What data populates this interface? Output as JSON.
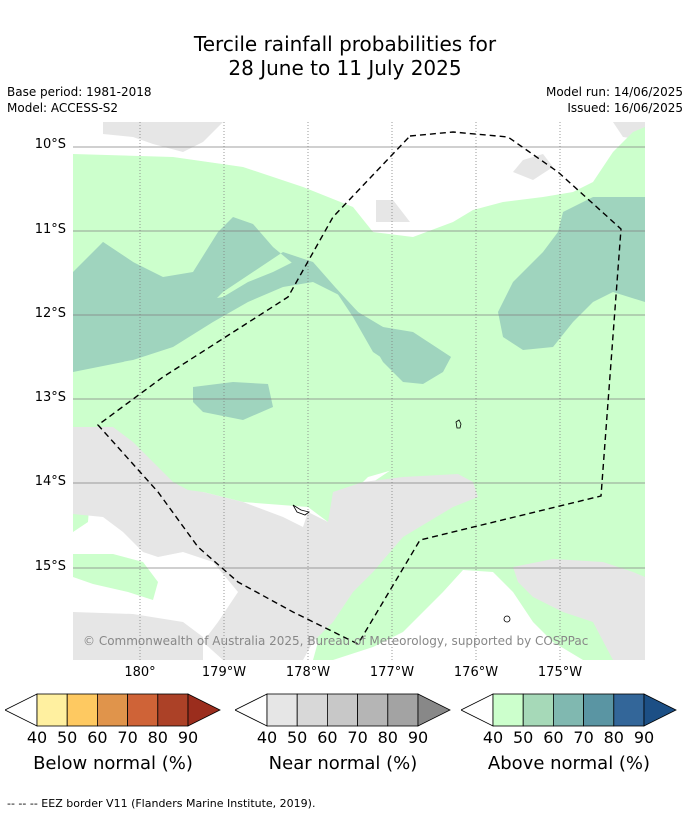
{
  "title": {
    "line1": "Tercile rainfall probabilities for",
    "line2": "28 June to 11 July 2025"
  },
  "meta": {
    "base_period": "Base period: 1981-2018",
    "model": "Model: ACCESS-S2",
    "model_run": "Model run: 14/06/2025",
    "issued": "Issued: 16/06/2025"
  },
  "map": {
    "latitudes": [
      "10°S",
      "11°S",
      "12°S",
      "13°S",
      "14°S",
      "15°S"
    ],
    "longitudes": [
      "180°",
      "179°W",
      "178°W",
      "177°W",
      "176°W",
      "175°W"
    ],
    "copyright": "© Commonwealth of Australia 2025, Bureau of Meteorology, supported by COSPPac",
    "colors": {
      "above_40": "#ccffcc",
      "above_50": "#9fd4be",
      "near_40": "#e6e6e6",
      "background": "#ffffff",
      "eez_border": "#000000"
    }
  },
  "legend": {
    "below": {
      "title": "Below normal (%)",
      "ticks": [
        "40",
        "50",
        "60",
        "70",
        "80",
        "90"
      ],
      "colors": [
        "#fff0a0",
        "#fec961",
        "#e0944b",
        "#cf6337",
        "#ac4127",
        "#9b2d1d"
      ]
    },
    "near": {
      "title": "Near normal (%)",
      "ticks": [
        "40",
        "50",
        "60",
        "70",
        "80",
        "90"
      ],
      "colors": [
        "#e6e6e6",
        "#d8d8d8",
        "#c8c8c8",
        "#b5b5b5",
        "#a3a3a3",
        "#888888"
      ]
    },
    "above": {
      "title": "Above normal (%)",
      "ticks": [
        "40",
        "50",
        "60",
        "70",
        "80",
        "90"
      ],
      "colors": [
        "#ccffcc",
        "#a6d9b8",
        "#80b8b0",
        "#5a95a3",
        "#336699",
        "#1c4f85"
      ]
    }
  },
  "footnote": "--  --  -- EEZ border V11 (Flanders Marine Institute, 2019)."
}
